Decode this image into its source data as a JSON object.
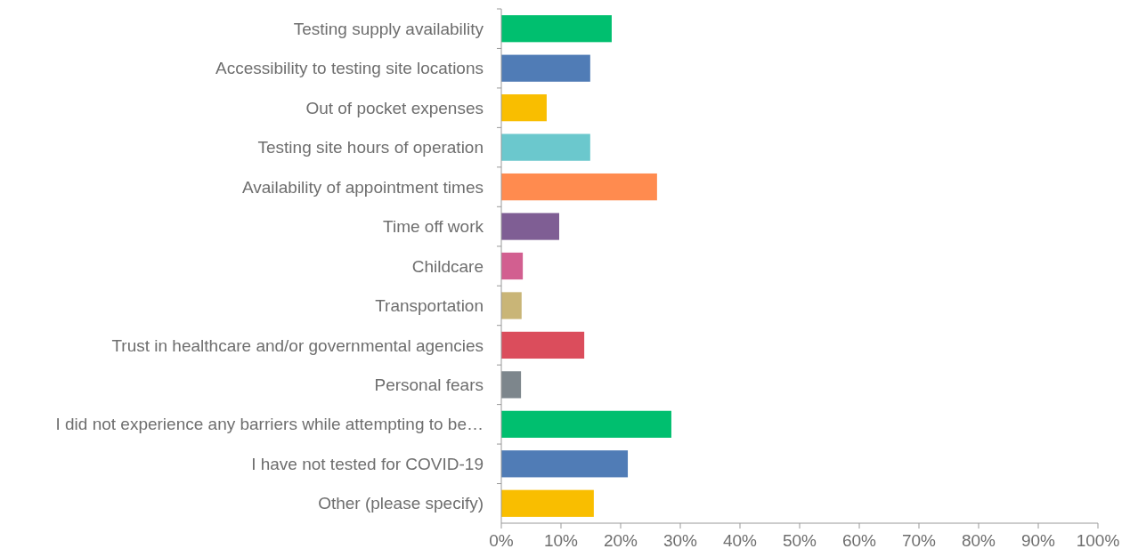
{
  "chart_data": {
    "type": "bar",
    "orientation": "horizontal",
    "categories": [
      "Testing supply availability",
      "Accessibility to testing site locations",
      "Out of pocket expenses",
      "Testing site hours of operation",
      "Availability of appointment times",
      "Time off work",
      "Childcare",
      "Transportation",
      "Trust in healthcare and/or governmental agencies",
      "Personal fears",
      "I did not experience any barriers while attempting to be…",
      "I have not tested for COVID-19",
      "Other (please specify)"
    ],
    "values": [
      18.5,
      14.9,
      7.6,
      14.9,
      26.1,
      9.7,
      3.6,
      3.4,
      13.9,
      3.3,
      28.5,
      21.2,
      15.5
    ],
    "colors": [
      "#00bf6f",
      "#507cb6",
      "#f9be00",
      "#6bc8cd",
      "#ff8b4f",
      "#7f5e94",
      "#d25f90",
      "#c9b577",
      "#db4d5c",
      "#7d868c",
      "#00bf6f",
      "#507cb6",
      "#f9be00"
    ],
    "xlim": [
      0,
      100
    ],
    "xticks": [
      {
        "value": 0,
        "label": "0%"
      },
      {
        "value": 10,
        "label": "10%"
      },
      {
        "value": 20,
        "label": "20%"
      },
      {
        "value": 30,
        "label": "30%"
      },
      {
        "value": 40,
        "label": "40%"
      },
      {
        "value": 50,
        "label": "50%"
      },
      {
        "value": 60,
        "label": "60%"
      },
      {
        "value": 70,
        "label": "70%"
      },
      {
        "value": 80,
        "label": "80%"
      },
      {
        "value": 90,
        "label": "90%"
      },
      {
        "value": 100,
        "label": "100%"
      }
    ]
  }
}
